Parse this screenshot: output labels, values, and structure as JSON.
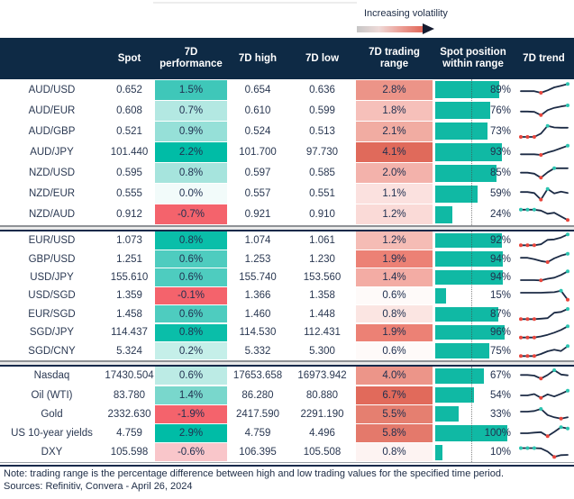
{
  "legend": {
    "label": "Increasing volatility",
    "gradient": [
      "#c6c6c6",
      "#eedad8",
      "#ec9f96",
      "#e1685a"
    ],
    "arrowhead_color": "#151c30"
  },
  "colors": {
    "header_bg": "#0E2A45",
    "header_text": "#ffffff",
    "bar_teal": "#10B9A4",
    "positive_full": "#00BCA6",
    "negative_full": "#F4636C",
    "spark_line": "#1C2B45",
    "spark_low_marker": "#E8453C",
    "spark_high_marker": "#2CC5B1"
  },
  "chart_data": {
    "type": "table",
    "columns": [
      "",
      "Spot",
      "7D performance",
      "7D high",
      "7D low",
      "7D trading range",
      "Spot position within range",
      "7D trend"
    ],
    "groups": [
      {
        "rows": [
          {
            "name": "AUD/USD",
            "spot": "0.652",
            "perf": "1.5%",
            "perf_color": "#3FC7B9",
            "high": "0.654",
            "low": "0.636",
            "range": "2.8%",
            "range_color": "#EC9488",
            "position_pct": 89,
            "position_label": "89%",
            "trend": {
              "points": [
                0.42,
                0.42,
                0.42,
                0.3,
                0.48,
                0.7,
                0.82,
                0.95
              ],
              "min_markers": [
                3
              ],
              "max_markers": [
                7
              ]
            }
          },
          {
            "name": "AUD/EUR",
            "spot": "0.608",
            "perf": "0.7%",
            "perf_color": "#B3E8E2",
            "high": "0.610",
            "low": "0.599",
            "range": "1.8%",
            "range_color": "#F6C0BA",
            "position_pct": 76,
            "position_label": "76%",
            "trend": {
              "points": [
                0.45,
                0.45,
                0.42,
                0.18,
                0.55,
                0.72,
                0.82,
                0.9
              ],
              "min_markers": [
                3
              ],
              "max_markers": [
                7
              ]
            }
          },
          {
            "name": "AUD/GBP",
            "spot": "0.521",
            "perf": "0.9%",
            "perf_color": "#96E0D8",
            "high": "0.524",
            "low": "0.513",
            "range": "2.1%",
            "range_color": "#F1ACA2",
            "position_pct": 73,
            "position_label": "73%",
            "trend": {
              "points": [
                0.1,
                0.1,
                0.1,
                0.35,
                0.92,
                0.8,
                0.78,
                0.78
              ],
              "min_markers": [
                0,
                1,
                2
              ],
              "max_markers": [
                4
              ]
            }
          },
          {
            "name": "AUD/JPY",
            "spot": "101.440",
            "perf": "2.2%",
            "perf_color": "#00BCA6",
            "high": "101.700",
            "low": "97.730",
            "range": "4.1%",
            "range_color": "#E06A5B",
            "position_pct": 93,
            "position_label": "93%",
            "trend": {
              "points": [
                0.35,
                0.35,
                0.35,
                0.3,
                0.48,
                0.62,
                0.8,
                0.98
              ],
              "min_markers": [
                3
              ],
              "max_markers": [
                7
              ]
            }
          },
          {
            "name": "NZD/USD",
            "spot": "0.595",
            "perf": "0.8%",
            "perf_color": "#A6E4DD",
            "high": "0.597",
            "low": "0.585",
            "range": "2.0%",
            "range_color": "#F3B2AB",
            "position_pct": 85,
            "position_label": "85%",
            "trend": {
              "points": [
                0.52,
                0.52,
                0.45,
                0.15,
                0.55,
                0.85,
                0.85,
                0.85
              ],
              "min_markers": [
                3
              ],
              "max_markers": [
                5
              ]
            }
          },
          {
            "name": "NZD/EUR",
            "spot": "0.555",
            "perf": "0.0%",
            "perf_color": "#F2FBFA",
            "high": "0.557",
            "low": "0.551",
            "range": "1.1%",
            "range_color": "#FBE1DF",
            "position_pct": 59,
            "position_label": "59%",
            "trend": {
              "points": [
                0.62,
                0.62,
                0.55,
                0.06,
                0.85,
                0.52,
                0.65,
                0.55
              ],
              "min_markers": [
                3
              ],
              "max_markers": [
                4
              ]
            }
          },
          {
            "name": "NZD/AUD",
            "spot": "0.912",
            "perf": "-0.7%",
            "perf_color": "#F4636C",
            "high": "0.921",
            "low": "0.910",
            "range": "1.2%",
            "range_color": "#FADAD7",
            "position_pct": 24,
            "position_label": "24%",
            "trend": {
              "points": [
                0.85,
                0.85,
                0.85,
                0.78,
                0.55,
                0.62,
                0.35,
                0.08
              ],
              "min_markers": [
                7
              ],
              "max_markers": [
                0,
                1,
                2
              ]
            }
          }
        ]
      },
      {
        "rows": [
          {
            "name": "EUR/USD",
            "spot": "1.073",
            "perf": "0.8%",
            "perf_color": "#0ABEA9",
            "high": "1.074",
            "low": "1.061",
            "range": "1.2%",
            "range_color": "#F5BCB5",
            "position_pct": 92,
            "position_label": "92%",
            "trend": {
              "points": [
                0.15,
                0.15,
                0.15,
                0.22,
                0.55,
                0.58,
                0.72,
                0.95
              ],
              "min_markers": [
                0,
                1,
                2
              ],
              "max_markers": [
                7
              ]
            }
          },
          {
            "name": "GBP/USD",
            "spot": "1.251",
            "perf": "0.6%",
            "perf_color": "#4ECCBF",
            "high": "1.253",
            "low": "1.230",
            "range": "1.9%",
            "range_color": "#EC8175",
            "position_pct": 94,
            "position_label": "94%",
            "trend": {
              "points": [
                0.62,
                0.62,
                0.52,
                0.38,
                0.3,
                0.58,
                0.78,
                0.92
              ],
              "min_markers": [
                4
              ],
              "max_markers": [
                7
              ]
            }
          },
          {
            "name": "USD/JPY",
            "spot": "155.610",
            "perf": "0.6%",
            "perf_color": "#4ECCBF",
            "high": "155.740",
            "low": "153.560",
            "range": "1.4%",
            "range_color": "#F3ACA4",
            "position_pct": 94,
            "position_label": "94%",
            "trend": {
              "points": [
                0.3,
                0.3,
                0.3,
                0.28,
                0.4,
                0.48,
                0.68,
                0.95
              ],
              "min_markers": [
                3
              ],
              "max_markers": [
                7
              ]
            }
          },
          {
            "name": "USD/SGD",
            "spot": "1.359",
            "perf": "-0.1%",
            "perf_color": "#F4636C",
            "high": "1.366",
            "low": "1.358",
            "range": "0.6%",
            "range_color": "#FEFAF9",
            "position_pct": 15,
            "position_label": "15%",
            "trend": {
              "points": [
                0.7,
                0.7,
                0.7,
                0.7,
                0.72,
                0.74,
                0.85,
                0.18
              ],
              "min_markers": [
                7
              ],
              "max_markers": [
                6
              ]
            }
          },
          {
            "name": "EUR/SGD",
            "spot": "1.458",
            "perf": "0.6%",
            "perf_color": "#4ECCBF",
            "high": "1.460",
            "low": "1.448",
            "range": "0.8%",
            "range_color": "#FBE5E2",
            "position_pct": 87,
            "position_label": "87%",
            "trend": {
              "points": [
                0.15,
                0.15,
                0.15,
                0.18,
                0.22,
                0.62,
                0.68,
                0.9
              ],
              "min_markers": [
                0,
                1,
                2
              ],
              "max_markers": [
                7
              ]
            }
          },
          {
            "name": "SGD/JPY",
            "spot": "114.437",
            "perf": "0.8%",
            "perf_color": "#0ABEA9",
            "high": "114.530",
            "low": "112.431",
            "range": "1.9%",
            "range_color": "#EC8175",
            "position_pct": 96,
            "position_label": "96%",
            "trend": {
              "points": [
                0.12,
                0.12,
                0.12,
                0.2,
                0.32,
                0.48,
                0.68,
                0.95
              ],
              "min_markers": [
                0,
                1,
                2
              ],
              "max_markers": [
                7
              ]
            }
          },
          {
            "name": "SGD/CNY",
            "spot": "5.324",
            "perf": "0.2%",
            "perf_color": "#C5EFE9",
            "high": "5.332",
            "low": "5.300",
            "range": "0.6%",
            "range_color": "#FEFAF9",
            "position_pct": 75,
            "position_label": "75%",
            "trend": {
              "points": [
                0.15,
                0.15,
                0.15,
                0.3,
                0.5,
                0.62,
                0.52,
                0.88
              ],
              "min_markers": [
                0,
                1,
                2
              ],
              "max_markers": [
                7
              ]
            }
          }
        ]
      },
      {
        "rows": [
          {
            "name": "Nasdaq",
            "spot": "17430.504",
            "perf": "0.6%",
            "perf_color": "#BCEBE5",
            "high": "17653.658",
            "low": "16973.942",
            "range": "4.0%",
            "range_color": "#EC9589",
            "position_pct": 67,
            "position_label": "67%",
            "trend": {
              "points": [
                0.55,
                0.55,
                0.5,
                0.28,
                0.55,
                0.9,
                0.58,
                0.52
              ],
              "min_markers": [
                3
              ],
              "max_markers": [
                5
              ]
            }
          },
          {
            "name": "Oil (WTI)",
            "spot": "83.780",
            "perf": "1.4%",
            "perf_color": "#79D7CC",
            "high": "86.280",
            "low": "80.880",
            "range": "6.7%",
            "range_color": "#E16A5B",
            "position_pct": 54,
            "position_label": "54%",
            "trend": {
              "points": [
                0.5,
                0.5,
                0.6,
                0.32,
                0.58,
                0.42,
                0.62,
                0.85
              ],
              "min_markers": [
                3
              ],
              "max_markers": [
                7
              ]
            }
          },
          {
            "name": "Gold",
            "spot": "2332.630",
            "perf": "-1.9%",
            "perf_color": "#F4636C",
            "high": "2417.590",
            "low": "2291.190",
            "range": "5.5%",
            "range_color": "#E57F70",
            "position_pct": 33,
            "position_label": "33%",
            "trend": {
              "points": [
                0.7,
                0.7,
                0.75,
                0.9,
                0.45,
                0.28,
                0.18,
                0.28
              ],
              "min_markers": [
                6
              ],
              "max_markers": [
                3
              ]
            }
          },
          {
            "name": "US 10-year yields",
            "spot": "4.759",
            "perf": "2.9%",
            "perf_color": "#00BCA6",
            "high": "4.759",
            "low": "4.496",
            "range": "5.8%",
            "range_color": "#E4796B",
            "position_pct": 100,
            "position_label": "100%",
            "trend": {
              "points": [
                0.5,
                0.5,
                0.55,
                0.58,
                0.28,
                0.6,
                0.95,
                0.85
              ],
              "min_markers": [
                4
              ],
              "max_markers": [
                6,
                7
              ]
            }
          },
          {
            "name": "DXY",
            "spot": "105.598",
            "perf": "-0.6%",
            "perf_color": "#F9C6CA",
            "high": "106.395",
            "low": "105.508",
            "range": "0.8%",
            "range_color": "#FDF3F2",
            "position_pct": 10,
            "position_label": "10%",
            "trend": {
              "points": [
                0.8,
                0.8,
                0.8,
                0.78,
                0.55,
                0.15,
                0.28,
                0.3
              ],
              "min_markers": [
                5
              ],
              "max_markers": [
                0,
                1,
                2
              ]
            }
          }
        ]
      }
    ]
  },
  "footer": {
    "note": "Note: trading range is the percentage difference between high and low trading values for the specified time period.",
    "sources": "Sources: Refinitiv, Convera - April 26, 2024"
  }
}
